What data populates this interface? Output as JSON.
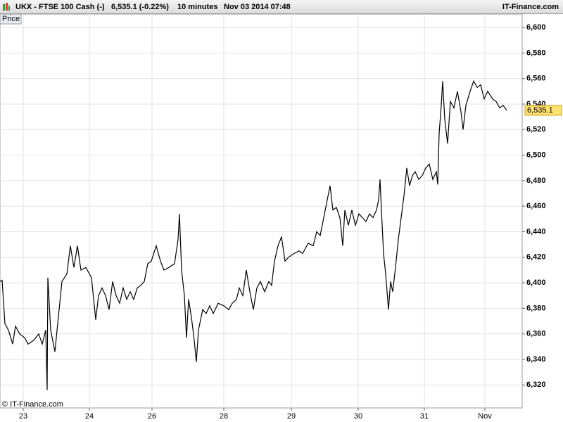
{
  "header": {
    "instrument": "UKX - FTSE 100 Cash (-)",
    "price_change": "6,535.1 (-0.22%)",
    "interval": "10 minutes",
    "timestamp": "Nov 03 2014 07:48",
    "site": "IT-Finance.com"
  },
  "chart_data": {
    "type": "line",
    "panel_label": "Price",
    "copyright": "© IT-Finance.com",
    "xlim": [
      0,
      742
    ],
    "ylim": [
      6302,
      6610.5
    ],
    "grid": true,
    "xticks": [
      {
        "value": 33,
        "label": "23"
      },
      {
        "value": 127,
        "label": "24"
      },
      {
        "value": 216,
        "label": "26"
      },
      {
        "value": 318,
        "label": "28"
      },
      {
        "value": 414,
        "label": "29"
      },
      {
        "value": 509,
        "label": "30"
      },
      {
        "value": 603,
        "label": "31"
      },
      {
        "value": 689,
        "label": "Nov"
      }
    ],
    "yticks": [
      {
        "value": 6320,
        "label": "6,320"
      },
      {
        "value": 6340,
        "label": "6,340"
      },
      {
        "value": 6360,
        "label": "6,360"
      },
      {
        "value": 6380,
        "label": "6,380"
      },
      {
        "value": 6400,
        "label": "6,400"
      },
      {
        "value": 6420,
        "label": "6,420"
      },
      {
        "value": 6440,
        "label": "6,440"
      },
      {
        "value": 6460,
        "label": "6,460"
      },
      {
        "value": 6480,
        "label": "6,480"
      },
      {
        "value": 6500,
        "label": "6,500"
      },
      {
        "value": 6520,
        "label": "6,520"
      },
      {
        "value": 6540,
        "label": "6,540"
      },
      {
        "value": 6560,
        "label": "6,560"
      },
      {
        "value": 6580,
        "label": "6,580"
      },
      {
        "value": 6600,
        "label": "6,600"
      }
    ],
    "last_price": {
      "value": 6535.1,
      "label": "6,535.1"
    },
    "series": [
      {
        "color": "#000000",
        "x": [
          0,
          3,
          7,
          12,
          18,
          22,
          28,
          35,
          40,
          48,
          55,
          60,
          65,
          67,
          68,
          72,
          78,
          82,
          88,
          95,
          100,
          105,
          110,
          115,
          122,
          130,
          136,
          140,
          145,
          150,
          155,
          160,
          165,
          170,
          175,
          180,
          185,
          190,
          195,
          200,
          205,
          210,
          215,
          222,
          228,
          233,
          240,
          248,
          253,
          255,
          258,
          262,
          265,
          268,
          272,
          276,
          279,
          282,
          288,
          293,
          298,
          303,
          310,
          318,
          325,
          330,
          336,
          340,
          345,
          350,
          355,
          360,
          365,
          370,
          376,
          382,
          386,
          390,
          395,
          400,
          405,
          410,
          418,
          425,
          430,
          438,
          445,
          450,
          455,
          460,
          465,
          469,
          473,
          478,
          483,
          487,
          490,
          495,
          500,
          505,
          510,
          515,
          520,
          525,
          530,
          535,
          538,
          540,
          542,
          545,
          548,
          552,
          555,
          558,
          562,
          566,
          570,
          574,
          578,
          582,
          586,
          590,
          595,
          600,
          605,
          610,
          615,
          620,
          622,
          624,
          627,
          629,
          632,
          636,
          640,
          645,
          650,
          655,
          658,
          662,
          668,
          673,
          678,
          683,
          688,
          693,
          700,
          705,
          710,
          715,
          720
        ],
        "values": [
          6401,
          6402,
          6368,
          6363,
          6352,
          6366,
          6360,
          6357,
          6352,
          6355,
          6360,
          6352,
          6363,
          6316,
          6404,
          6363,
          6346,
          6368,
          6401,
          6407,
          6429,
          6412,
          6429,
          6410,
          6412,
          6404,
          6371,
          6390,
          6396,
          6390,
          6379,
          6401,
          6390,
          6384,
          6396,
          6387,
          6393,
          6387,
          6396,
          6398,
          6401,
          6415,
          6417,
          6429,
          6417,
          6410,
          6412,
          6415,
          6434,
          6454,
          6410,
          6390,
          6357,
          6387,
          6373,
          6355,
          6338,
          6363,
          6379,
          6376,
          6382,
          6376,
          6384,
          6382,
          6379,
          6384,
          6387,
          6396,
          6390,
          6410,
          6393,
          6379,
          6396,
          6401,
          6393,
          6401,
          6398,
          6417,
          6429,
          6436,
          6417,
          6420,
          6423,
          6425,
          6423,
          6431,
          6429,
          6440,
          6437,
          6451,
          6465,
          6476,
          6457,
          6459,
          6451,
          6429,
          6457,
          6445,
          6457,
          6445,
          6454,
          6451,
          6448,
          6454,
          6451,
          6457,
          6465,
          6481,
          6457,
          6423,
          6407,
          6379,
          6401,
          6393,
          6412,
          6434,
          6451,
          6468,
          6490,
          6476,
          6484,
          6487,
          6481,
          6484,
          6490,
          6493,
          6481,
          6487,
          6477,
          6517,
          6539,
          6558,
          6528,
          6509,
          6542,
          6537,
          6550,
          6534,
          6520,
          6539,
          6550,
          6558,
          6553,
          6555,
          6544,
          6550,
          6544,
          6542,
          6537,
          6539,
          6535.1
        ]
      }
    ]
  }
}
